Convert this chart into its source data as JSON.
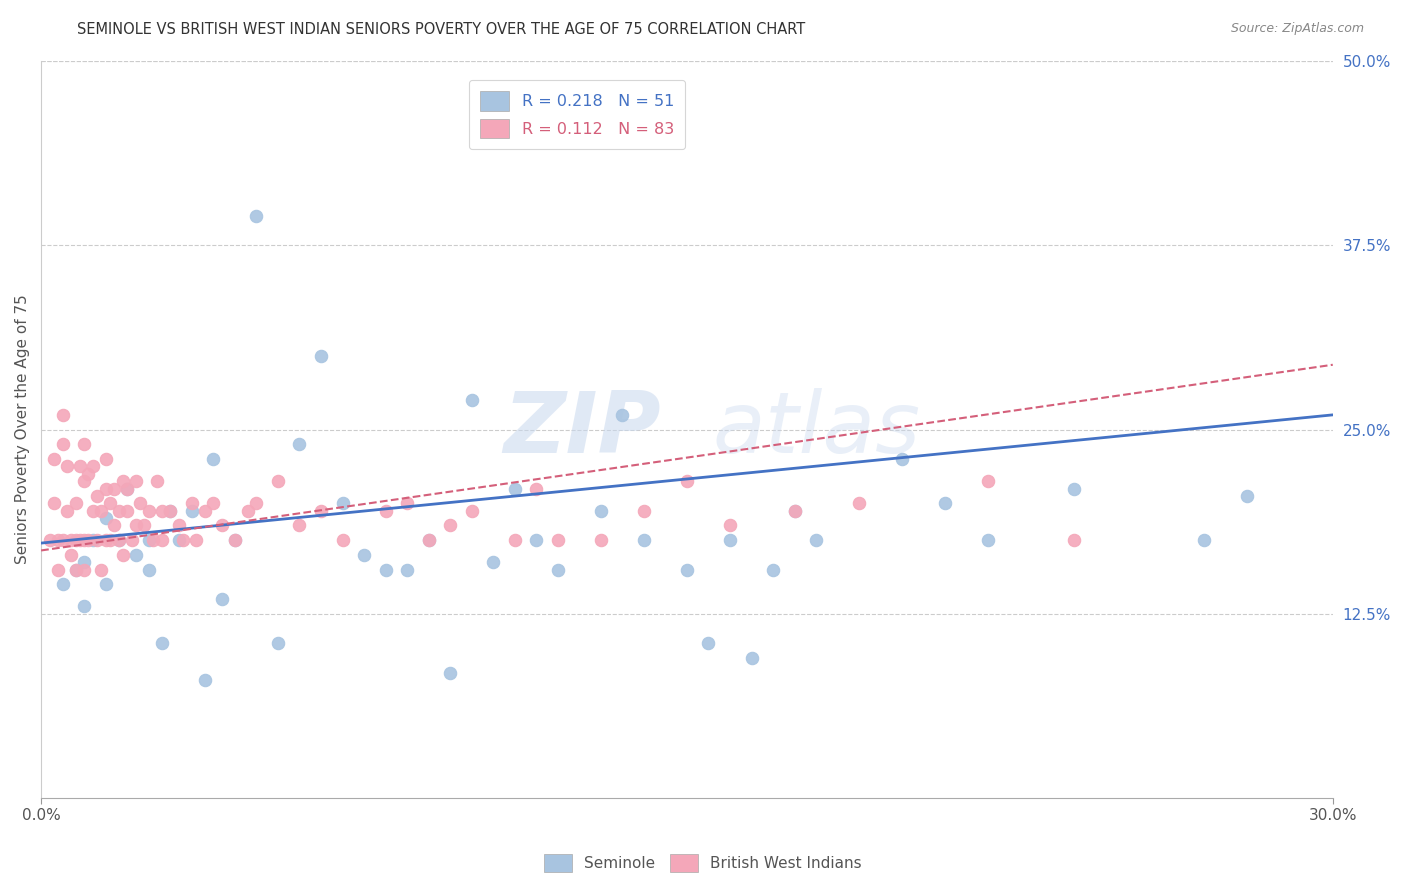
{
  "title": "SEMINOLE VS BRITISH WEST INDIAN SENIORS POVERTY OVER THE AGE OF 75 CORRELATION CHART",
  "source": "Source: ZipAtlas.com",
  "ylabel": "Seniors Poverty Over the Age of 75",
  "x_min": 0.0,
  "x_max": 0.3,
  "y_min": 0.0,
  "y_max": 0.5,
  "y_ticks_right": [
    0.125,
    0.25,
    0.375,
    0.5
  ],
  "y_tick_labels_right": [
    "12.5%",
    "25.0%",
    "37.5%",
    "50.0%"
  ],
  "seminole_R": 0.218,
  "seminole_N": 51,
  "bwi_R": 0.112,
  "bwi_N": 83,
  "seminole_color": "#a8c4e0",
  "bwi_color": "#f4a7b9",
  "trend_seminole_color": "#4472c4",
  "trend_bwi_color": "#d45f7a",
  "legend_label_1": "Seminole",
  "legend_label_2": "British West Indians",
  "watermark": "ZIPatlas",
  "seminole_x": [
    0.005,
    0.008,
    0.01,
    0.01,
    0.012,
    0.015,
    0.015,
    0.018,
    0.02,
    0.022,
    0.025,
    0.025,
    0.028,
    0.03,
    0.032,
    0.035,
    0.038,
    0.04,
    0.042,
    0.045,
    0.05,
    0.055,
    0.06,
    0.065,
    0.07,
    0.075,
    0.08,
    0.085,
    0.09,
    0.095,
    0.1,
    0.105,
    0.11,
    0.115,
    0.12,
    0.13,
    0.135,
    0.14,
    0.15,
    0.155,
    0.16,
    0.165,
    0.17,
    0.175,
    0.18,
    0.2,
    0.21,
    0.22,
    0.24,
    0.27,
    0.28
  ],
  "seminole_y": [
    0.145,
    0.155,
    0.13,
    0.16,
    0.175,
    0.19,
    0.145,
    0.175,
    0.21,
    0.165,
    0.175,
    0.155,
    0.105,
    0.195,
    0.175,
    0.195,
    0.08,
    0.23,
    0.135,
    0.175,
    0.395,
    0.105,
    0.24,
    0.3,
    0.2,
    0.165,
    0.155,
    0.155,
    0.175,
    0.085,
    0.27,
    0.16,
    0.21,
    0.175,
    0.155,
    0.195,
    0.26,
    0.175,
    0.155,
    0.105,
    0.175,
    0.095,
    0.155,
    0.195,
    0.175,
    0.23,
    0.2,
    0.175,
    0.21,
    0.175,
    0.205
  ],
  "bwi_x": [
    0.002,
    0.003,
    0.003,
    0.004,
    0.004,
    0.005,
    0.005,
    0.005,
    0.006,
    0.006,
    0.007,
    0.007,
    0.008,
    0.008,
    0.008,
    0.009,
    0.009,
    0.01,
    0.01,
    0.01,
    0.01,
    0.011,
    0.011,
    0.012,
    0.012,
    0.013,
    0.013,
    0.014,
    0.014,
    0.015,
    0.015,
    0.015,
    0.016,
    0.016,
    0.017,
    0.017,
    0.018,
    0.018,
    0.019,
    0.019,
    0.02,
    0.02,
    0.021,
    0.022,
    0.022,
    0.023,
    0.024,
    0.025,
    0.026,
    0.027,
    0.028,
    0.028,
    0.03,
    0.032,
    0.033,
    0.035,
    0.036,
    0.038,
    0.04,
    0.042,
    0.045,
    0.048,
    0.05,
    0.055,
    0.06,
    0.065,
    0.07,
    0.08,
    0.085,
    0.09,
    0.095,
    0.1,
    0.11,
    0.115,
    0.12,
    0.13,
    0.14,
    0.15,
    0.16,
    0.175,
    0.19,
    0.22,
    0.24
  ],
  "bwi_y": [
    0.175,
    0.23,
    0.2,
    0.175,
    0.155,
    0.26,
    0.24,
    0.175,
    0.225,
    0.195,
    0.175,
    0.165,
    0.2,
    0.175,
    0.155,
    0.225,
    0.175,
    0.24,
    0.215,
    0.175,
    0.155,
    0.22,
    0.175,
    0.225,
    0.195,
    0.205,
    0.175,
    0.195,
    0.155,
    0.23,
    0.21,
    0.175,
    0.2,
    0.175,
    0.21,
    0.185,
    0.195,
    0.175,
    0.215,
    0.165,
    0.21,
    0.195,
    0.175,
    0.215,
    0.185,
    0.2,
    0.185,
    0.195,
    0.175,
    0.215,
    0.175,
    0.195,
    0.195,
    0.185,
    0.175,
    0.2,
    0.175,
    0.195,
    0.2,
    0.185,
    0.175,
    0.195,
    0.2,
    0.215,
    0.185,
    0.195,
    0.175,
    0.195,
    0.2,
    0.175,
    0.185,
    0.195,
    0.175,
    0.21,
    0.175,
    0.175,
    0.195,
    0.215,
    0.185,
    0.195,
    0.2,
    0.215,
    0.175
  ]
}
